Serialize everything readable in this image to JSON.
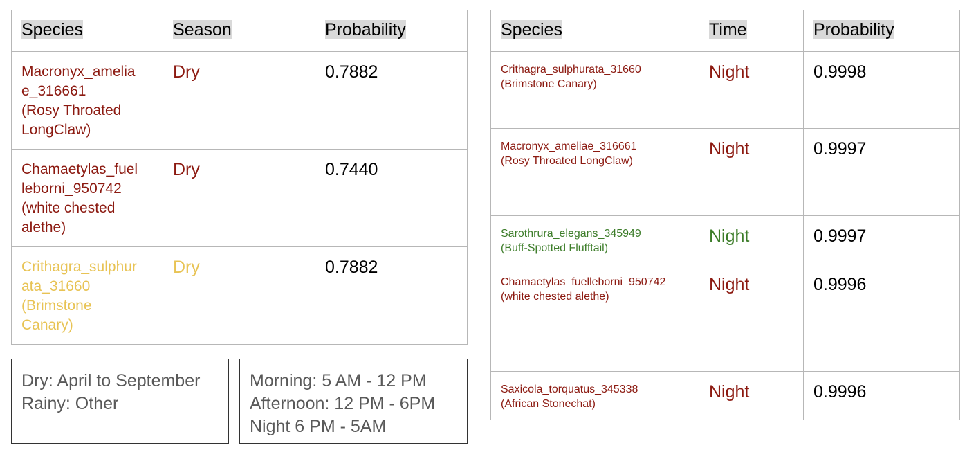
{
  "colors": {
    "red": "#8c1a11",
    "yellow": "#e8c354",
    "green": "#3d7d2a",
    "header_highlight": "#d9d9d9"
  },
  "season_table": {
    "headers": [
      "Species",
      "Season",
      "Probability"
    ],
    "rows": [
      {
        "species": "Macronyx_amelia\ne_316661\n(Rosy Throated\nLongClaw)",
        "season": "Dry",
        "probability": "0.7882",
        "color": "#8c1a11"
      },
      {
        "species": "Chamaetylas_fuel\nleborni_950742\n(white chested\nalethe)",
        "season": "Dry",
        "probability": "0.7440",
        "color": "#8c1a11"
      },
      {
        "species": "Crithagra_sulphur\nata_31660\n(Brimstone\nCanary)",
        "season": "Dry",
        "probability": "0.7882",
        "color": "#e8c354"
      }
    ]
  },
  "time_table": {
    "headers": [
      "Species",
      "Time",
      "Probability"
    ],
    "rows": [
      {
        "species": "Crithagra_sulphurata_31660\n(Brimstone Canary)",
        "time": "Night",
        "probability": "0.9998",
        "color": "#8c1a11"
      },
      {
        "species": "Macronyx_ameliae_316661\n(Rosy Throated LongClaw)",
        "time": "Night",
        "probability": "0.9997",
        "color": "#8c1a11"
      },
      {
        "species": "Sarothrura_elegans_345949\n(Buff-Spotted Flufftail)",
        "time": "Night",
        "probability": "0.9997",
        "color": "#3d7d2a"
      },
      {
        "species": "Chamaetylas_fuelleborni_950742\n(white chested alethe)",
        "time": "Night",
        "probability": "0.9996",
        "color": "#8c1a11"
      },
      {
        "species": "Saxicola_torquatus_345338\n(African Stonechat)",
        "time": "Night",
        "probability": "0.9996",
        "color": "#8c1a11"
      }
    ]
  },
  "season_legend": [
    "Dry: April to September",
    "Rainy: Other"
  ],
  "time_legend": [
    "Morning: 5 AM - 12 PM",
    "Afternoon: 12 PM - 6PM",
    "Night 6 PM - 5AM"
  ]
}
